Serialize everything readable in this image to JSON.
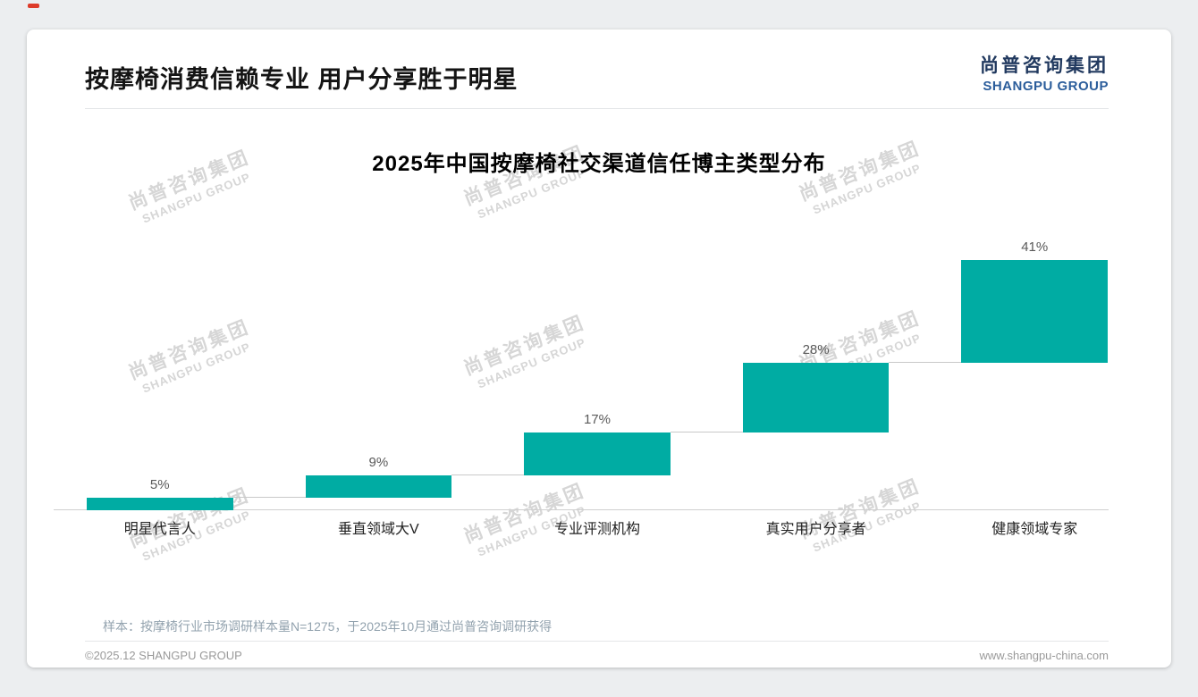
{
  "page": {
    "title": "按摩椅消费信赖专业 用户分享胜于明星",
    "logo": {
      "cn": "尚普咨询集团",
      "en": "SHANGPU GROUP"
    },
    "watermark": {
      "cn": "尚普咨询集团",
      "en": "SHANGPU GROUP"
    },
    "note": "样本：按摩椅行业市场调研样本量N=1275，于2025年10月通过尚普咨询调研获得",
    "footer": {
      "left": "©2025.12 SHANGPU GROUP",
      "right": "www.shangpu-china.com"
    }
  },
  "chart_data": {
    "type": "bar",
    "subtype": "waterfall-staircase",
    "title": "2025年中国按摩椅社交渠道信任博主类型分布",
    "categories": [
      "明星代言人",
      "垂直领域大V",
      "专业评测机构",
      "真实用户分享者",
      "健康领域专家"
    ],
    "values": [
      5,
      9,
      17,
      28,
      41
    ],
    "labels": [
      "5%",
      "9%",
      "17%",
      "28%",
      "41%"
    ],
    "cumulative_starts": [
      0,
      5,
      14,
      31,
      59
    ],
    "ylim": [
      0,
      100
    ],
    "bar_color": "#00ACA3",
    "xlabel": "",
    "ylabel": "",
    "grid": false,
    "legend": false
  }
}
